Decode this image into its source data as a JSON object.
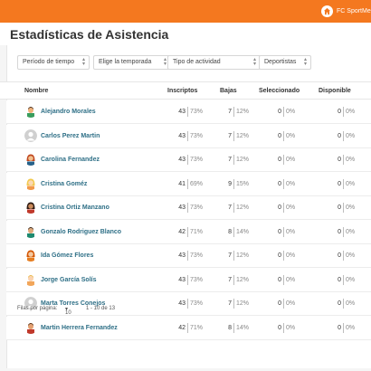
{
  "topbar": {
    "brand": "FC SportMe",
    "color": "#f4781f"
  },
  "page_title": "Estadísticas de Asistencia",
  "filters": [
    {
      "label": "Período de tiempo"
    },
    {
      "label": "Elige la temporada"
    },
    {
      "label": "Tipo de actividad"
    },
    {
      "label": "Deportistas"
    }
  ],
  "table": {
    "headers": {
      "name": "Nombre",
      "inscriptos": "Inscriptos",
      "bajas": "Bajas",
      "seleccionado": "Seleccionado",
      "disponible": "Disponible"
    },
    "rows": [
      {
        "name": "Alejandro Morales",
        "avatar": "avatar-man-green",
        "inscriptos": "43",
        "inscriptos_pct": "73%",
        "bajas": "7",
        "bajas_pct": "12%",
        "sel": "0",
        "sel_pct": "0%",
        "disp": "0",
        "disp_pct": "0%"
      },
      {
        "name": "Carlos Perez Martin",
        "avatar": "avatar-placeholder",
        "inscriptos": "43",
        "inscriptos_pct": "73%",
        "bajas": "7",
        "bajas_pct": "12%",
        "sel": "0",
        "sel_pct": "0%",
        "disp": "0",
        "disp_pct": "0%"
      },
      {
        "name": "Carolina Fernandez",
        "avatar": "avatar-woman-red",
        "inscriptos": "43",
        "inscriptos_pct": "73%",
        "bajas": "7",
        "bajas_pct": "12%",
        "sel": "0",
        "sel_pct": "0%",
        "disp": "0",
        "disp_pct": "0%"
      },
      {
        "name": "Cristina Goméz",
        "avatar": "avatar-woman-blonde",
        "inscriptos": "41",
        "inscriptos_pct": "69%",
        "bajas": "9",
        "bajas_pct": "15%",
        "sel": "0",
        "sel_pct": "0%",
        "disp": "0",
        "disp_pct": "0%"
      },
      {
        "name": "Cristina Ortiz Manzano",
        "avatar": "avatar-woman-dark",
        "inscriptos": "43",
        "inscriptos_pct": "73%",
        "bajas": "7",
        "bajas_pct": "12%",
        "sel": "0",
        "sel_pct": "0%",
        "disp": "0",
        "disp_pct": "0%"
      },
      {
        "name": "Gonzalo Rodriguez Blanco",
        "avatar": "avatar-man-teal",
        "inscriptos": "42",
        "inscriptos_pct": "71%",
        "bajas": "8",
        "bajas_pct": "14%",
        "sel": "0",
        "sel_pct": "0%",
        "disp": "0",
        "disp_pct": "0%"
      },
      {
        "name": "Ida Gómez Flores",
        "avatar": "avatar-woman-orange",
        "inscriptos": "43",
        "inscriptos_pct": "73%",
        "bajas": "7",
        "bajas_pct": "12%",
        "sel": "0",
        "sel_pct": "0%",
        "disp": "0",
        "disp_pct": "0%"
      },
      {
        "name": "Jorge García Solís",
        "avatar": "avatar-man-blonde",
        "inscriptos": "43",
        "inscriptos_pct": "73%",
        "bajas": "7",
        "bajas_pct": "12%",
        "sel": "0",
        "sel_pct": "0%",
        "disp": "0",
        "disp_pct": "0%"
      },
      {
        "name": "Marta Torres Conejos",
        "avatar": "avatar-placeholder",
        "inscriptos": "43",
        "inscriptos_pct": "73%",
        "bajas": "7",
        "bajas_pct": "12%",
        "sel": "0",
        "sel_pct": "0%",
        "disp": "0",
        "disp_pct": "0%"
      },
      {
        "name": "Martin Herrera Fernandez",
        "avatar": "avatar-man-red",
        "inscriptos": "42",
        "inscriptos_pct": "71%",
        "bajas": "8",
        "bajas_pct": "14%",
        "sel": "0",
        "sel_pct": "0%",
        "disp": "0",
        "disp_pct": "0%"
      }
    ]
  },
  "pagination": {
    "label": "Filas por página:",
    "per_page": "10",
    "range": "1 - 10 de 13"
  }
}
